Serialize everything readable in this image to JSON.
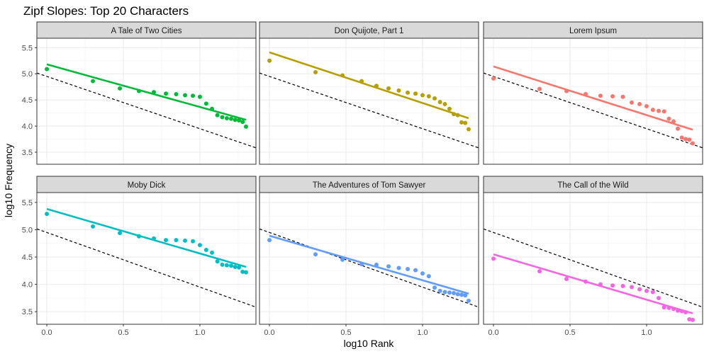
{
  "title": "Zipf Slopes: Top 20 Characters",
  "xlabel": "log10 Rank",
  "ylabel": "log10 Frequency",
  "x_ticks": [
    "0.0",
    "0.5",
    "1.0"
  ],
  "y_ticks": [
    "3.5",
    "4.0",
    "4.5",
    "5.0",
    "5.5"
  ],
  "chart_data": {
    "type": "scatter",
    "title": "Zipf Slopes: Top 20 Characters",
    "xlabel": "log10 Rank",
    "ylabel": "log10 Frequency",
    "xlim": [
      -0.065,
      1.366
    ],
    "ylim": [
      3.27,
      5.68
    ],
    "x_ticks": [
      0.0,
      0.5,
      1.0
    ],
    "y_ticks": [
      3.5,
      4.0,
      4.5,
      5.0,
      5.5
    ],
    "grid": true,
    "layout": "facet 2 rows x 3 columns",
    "reference_line": {
      "style": "dashed",
      "color": "#000000",
      "intercept": 4.95,
      "slope": -1.0
    },
    "rank_x": [
      0.0,
      0.301,
      0.477,
      0.602,
      0.699,
      0.778,
      0.845,
      0.903,
      0.954,
      1.0,
      1.041,
      1.079,
      1.114,
      1.146,
      1.176,
      1.204,
      1.23,
      1.255,
      1.279,
      1.301
    ],
    "panels": [
      {
        "name": "A Tale of Two Cities",
        "color": "#00BA38",
        "y": [
          5.09,
          4.86,
          4.72,
          4.67,
          4.65,
          4.62,
          4.61,
          4.59,
          4.58,
          4.56,
          4.43,
          4.33,
          4.21,
          4.17,
          4.15,
          4.14,
          4.12,
          4.11,
          4.08,
          3.99
        ],
        "fit": {
          "x": [
            0.0,
            1.301
          ],
          "y": [
            5.18,
            4.12
          ]
        }
      },
      {
        "name": "Don Quijote, Part 1",
        "color": "#B79F00",
        "y": [
          5.25,
          5.03,
          4.97,
          4.86,
          4.77,
          4.72,
          4.68,
          4.64,
          4.62,
          4.59,
          4.57,
          4.53,
          4.46,
          4.42,
          4.33,
          4.23,
          4.21,
          4.07,
          4.06,
          3.94
        ],
        "fit": {
          "x": [
            0.0,
            1.301
          ],
          "y": [
            5.41,
            4.15
          ]
        }
      },
      {
        "name": "Lorem Ipsum",
        "color": "#F8766D",
        "y": [
          4.91,
          4.71,
          4.67,
          4.61,
          4.58,
          4.57,
          4.56,
          4.45,
          4.42,
          4.38,
          4.31,
          4.29,
          4.28,
          4.14,
          4.09,
          3.95,
          3.78,
          3.75,
          3.74,
          3.67
        ],
        "fit": {
          "x": [
            0.0,
            1.301
          ],
          "y": [
            5.14,
            3.93
          ]
        }
      },
      {
        "name": "Moby Dick",
        "color": "#00BFC4",
        "y": [
          5.29,
          5.06,
          4.94,
          4.88,
          4.84,
          4.81,
          4.81,
          4.8,
          4.79,
          4.72,
          4.63,
          4.58,
          4.42,
          4.36,
          4.35,
          4.34,
          4.32,
          4.31,
          4.23,
          4.22
        ],
        "fit": {
          "x": [
            0.0,
            1.301
          ],
          "y": [
            5.38,
            4.32
          ]
        }
      },
      {
        "name": "The Adventures of Tom Sawyer",
        "color": "#619CFF",
        "y": [
          4.81,
          4.55,
          4.45,
          4.37,
          4.36,
          4.33,
          4.3,
          4.28,
          4.26,
          4.2,
          4.15,
          3.94,
          3.88,
          3.86,
          3.85,
          3.84,
          3.82,
          3.81,
          3.8,
          3.7
        ],
        "fit": {
          "x": [
            0.0,
            1.301
          ],
          "y": [
            4.89,
            3.83
          ]
        }
      },
      {
        "name": "The Call of the Wild",
        "color": "#F564E3",
        "y": [
          4.47,
          4.24,
          4.1,
          4.05,
          4.0,
          3.98,
          3.97,
          3.95,
          3.91,
          3.88,
          3.86,
          3.75,
          3.58,
          3.57,
          3.55,
          3.52,
          3.51,
          3.49,
          3.36,
          3.35
        ],
        "fit": {
          "x": [
            0.0,
            1.301
          ],
          "y": [
            4.55,
            3.47
          ]
        }
      }
    ]
  }
}
